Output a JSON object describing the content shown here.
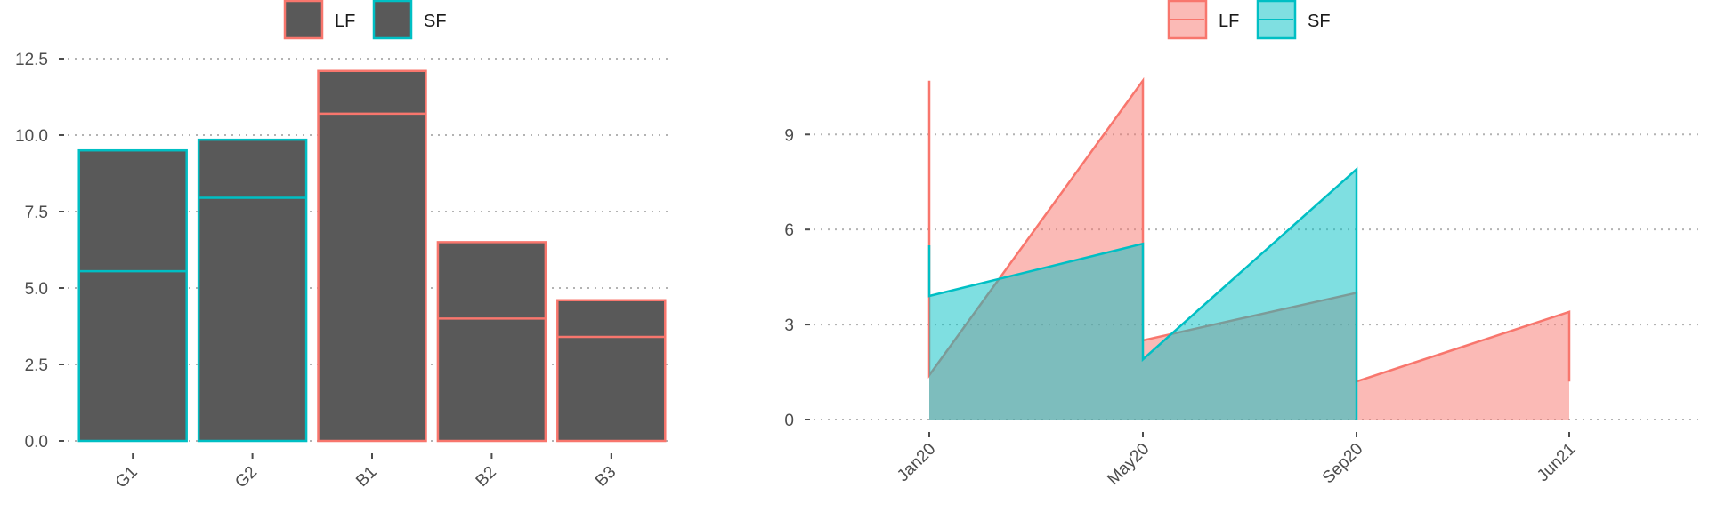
{
  "chart_data": [
    {
      "type": "bar",
      "title": "",
      "xlabel": "",
      "ylabel": "",
      "ylim": [
        0,
        12.5
      ],
      "yticks": [
        "0.0",
        "2.5",
        "5.0",
        "7.5",
        "10.0",
        "12.5"
      ],
      "categories": [
        "G1",
        "G2",
        "B1",
        "B2",
        "B3"
      ],
      "values": [
        9.5,
        9.85,
        12.1,
        6.5,
        4.6
      ],
      "inner_line_values": [
        5.55,
        7.95,
        10.7,
        4.0,
        3.4
      ],
      "bar_group": [
        "SF",
        "SF",
        "LF",
        "LF",
        "LF"
      ],
      "fill_color": "#595959",
      "grid": true,
      "legend_position": "top-center",
      "legend": [
        {
          "label": "LF",
          "color": "#F8766D"
        },
        {
          "label": "SF",
          "color": "#00BFC4"
        }
      ]
    },
    {
      "type": "area",
      "title": "",
      "xlabel": "",
      "ylabel": "",
      "ylim": [
        0,
        11
      ],
      "yticks": [
        "0",
        "3",
        "6",
        "9"
      ],
      "xticks": [
        "Jan20",
        "May20",
        "Sep20",
        "Jun21"
      ],
      "grid": true,
      "legend_position": "top-center",
      "series": [
        {
          "name": "LF",
          "color": "#F8766D",
          "fill": "#F8766D",
          "x": [
            "Jan20",
            "Jan20",
            "May20",
            "May20",
            "Sep20",
            "Sep20",
            "Jun21",
            "Jun21"
          ],
          "values": [
            10.7,
            1.4,
            10.7,
            2.5,
            4.0,
            1.2,
            3.4,
            1.2
          ]
        },
        {
          "name": "SF",
          "color": "#00BFC4",
          "fill": "#00BFC4",
          "x": [
            "Jan20",
            "Jan20",
            "May20",
            "May20",
            "Sep20",
            "Sep20"
          ],
          "values": [
            5.5,
            3.9,
            5.55,
            1.9,
            7.9,
            0.0
          ]
        }
      ]
    }
  ]
}
